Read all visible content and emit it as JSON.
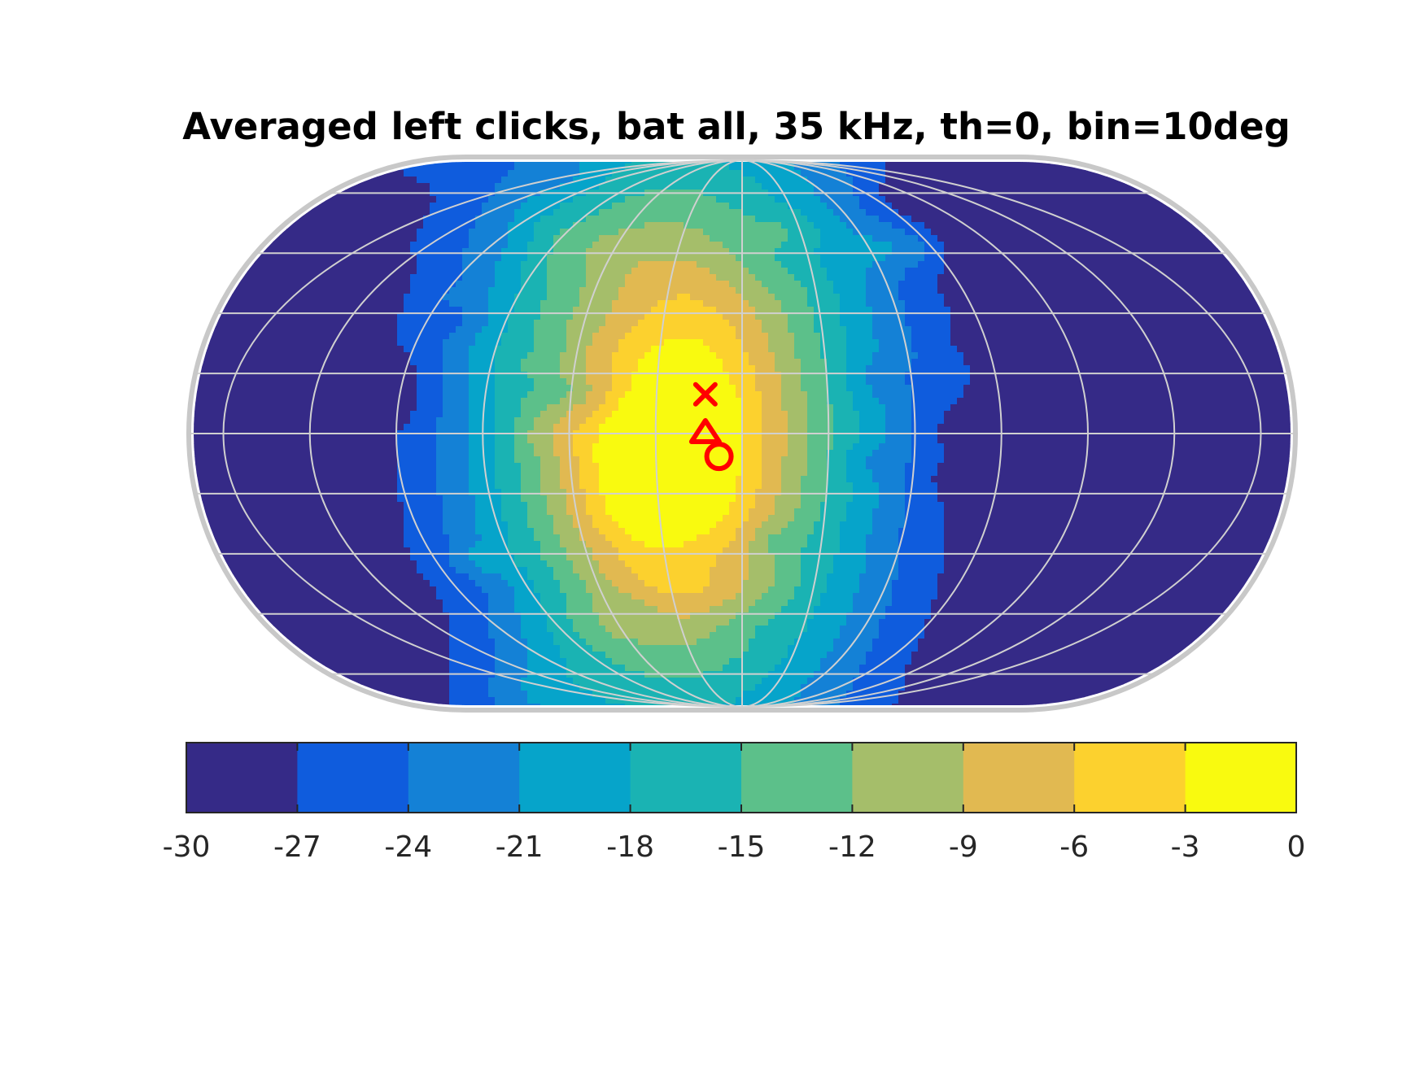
{
  "chart_data": {
    "type": "heatmap",
    "title": "Averaged left clicks, bat all, 35 kHz, th=0, bin=10deg",
    "projection": "eckert-iv",
    "grid": true,
    "contour_lines": true,
    "levels": [
      -30,
      -27,
      -24,
      -21,
      -18,
      -15,
      -12,
      -9,
      -6,
      -3,
      0
    ],
    "colormap": [
      "#352a87",
      "#0f5cdd",
      "#1481d6",
      "#06a4ca",
      "#1ab3b3",
      "#5cc08a",
      "#a5be6a",
      "#e1b951",
      "#fcd12e",
      "#f9fa0f"
    ],
    "colorbar": {
      "location": "bottom",
      "tick_labels": [
        "-30",
        "-27",
        "-24",
        "-21",
        "-18",
        "-15",
        "-12",
        "-9",
        "-6",
        "-3",
        "0"
      ]
    },
    "markers": [
      {
        "symbol": "x",
        "color": "#ff0000",
        "azimuth_deg": -3,
        "elevation_deg": 3
      },
      {
        "symbol": "triangle",
        "color": "#ff0000",
        "azimuth_deg": -3,
        "elevation_deg": 0
      },
      {
        "symbol": "circle",
        "color": "#ff0000",
        "azimuth_deg": -2,
        "elevation_deg": -1
      }
    ]
  }
}
